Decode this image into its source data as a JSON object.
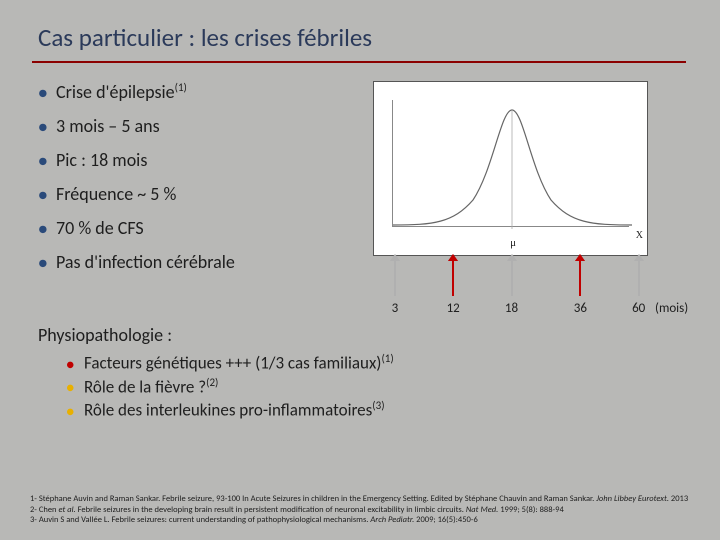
{
  "title": "Cas particulier : les crises fébriles",
  "bullets": [
    {
      "text": "Crise d'épilepsie",
      "sup": "(1)"
    },
    {
      "text": "3 mois – 5 ans",
      "sup": ""
    },
    {
      "text": "Pic : 18 mois",
      "sup": ""
    },
    {
      "text": "Fréquence ~ 5 %",
      "sup": ""
    },
    {
      "text": "70 % de CFS",
      "sup": ""
    },
    {
      "text": "Pas d'infection cérébrale",
      "sup": ""
    }
  ],
  "chart": {
    "mu_label": "μ",
    "x_label": "X",
    "curve_color": "#666666",
    "box_border": "#555555",
    "box_bg": "#ffffff"
  },
  "arrows": [
    {
      "label": "3",
      "pos_pct": 6,
      "color": "#b0b0b0"
    },
    {
      "label": "12",
      "pos_pct": 28,
      "color": "#c00000"
    },
    {
      "label": "18",
      "pos_pct": 50,
      "color": "#b0b0b0"
    },
    {
      "label": "36",
      "pos_pct": 76,
      "color": "#c00000"
    },
    {
      "label": "60",
      "pos_pct": 98,
      "color": "#b0b0b0"
    }
  ],
  "arrow_units": "(mois)",
  "physio_title": "Physiopathologie :",
  "sub_bullets": [
    {
      "color": "#c00000",
      "text": "Facteurs génétiques +++ (1/3 cas familiaux)",
      "sup": "(1)"
    },
    {
      "color": "#e8b000",
      "text": "Rôle de la fièvre ?",
      "sup": "(2)"
    },
    {
      "color": "#e8b000",
      "text": "Rôle des interleukines pro-inflammatoires",
      "sup": "(3)"
    }
  ],
  "refs": {
    "r1a": "1- Stéphane Auvin and Raman Sankar. Febrile seizure, 93-100 In Acute Seizures in children in the Emergency Setting. Edited by Stéphane Chauvin and Raman Sankar. ",
    "r1b": "John Libbey Eurotext.",
    "r1c": " 2013",
    "r2a": "2- Chen ",
    "r2b": "et al.",
    "r2c": " Febrile seizures in the developing brain result in persistent modification of neuronal excitability in limbic circuits. ",
    "r2d": "Nat Med.",
    "r2e": " 1999; 5(8): 888-94",
    "r3a": "3- Auvin S and Vallée L. Febrile seizures: current understanding of pathophysiological mechanisms. ",
    "r3b": "Arch Pediatr.",
    "r3c": " 2009; 16(5):450-6"
  }
}
